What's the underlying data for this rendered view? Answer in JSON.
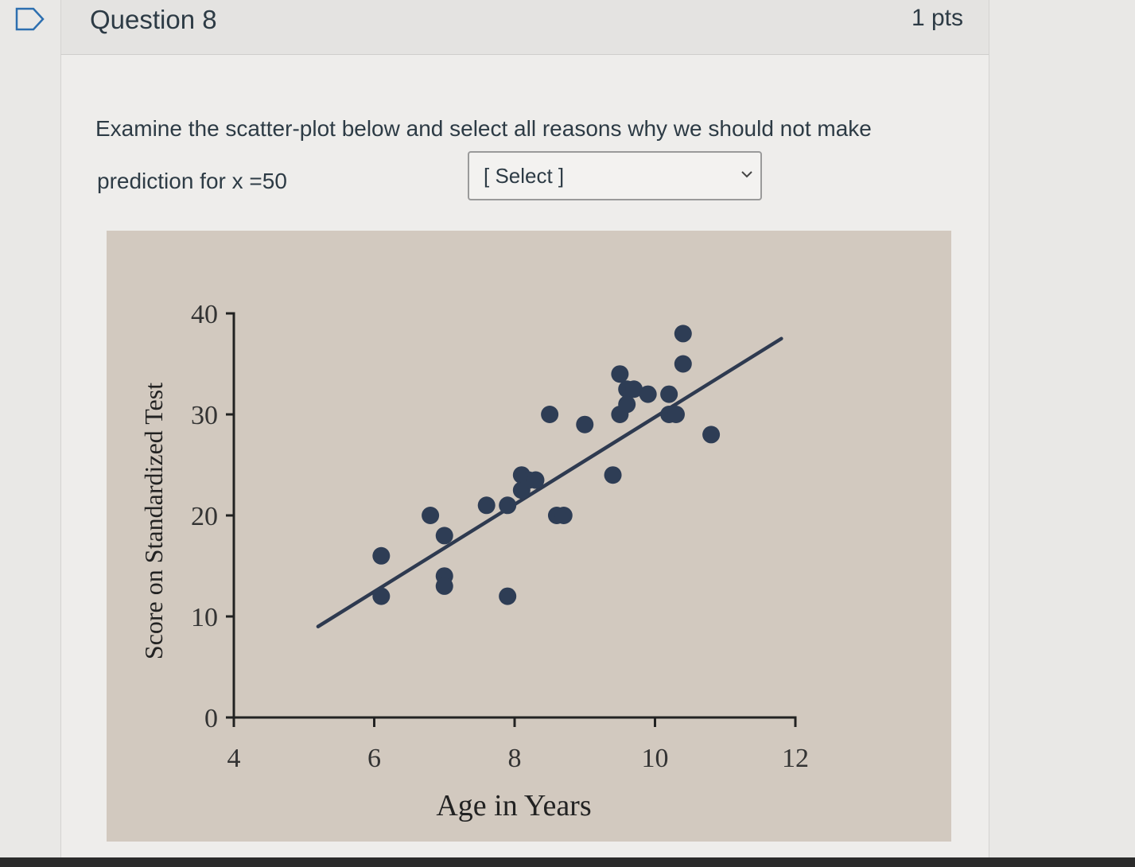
{
  "question": {
    "title": "Question 8",
    "points": "1 pts",
    "prompt_line1": "Examine the scatter-plot below and select all reasons why we should not make",
    "prompt_line2": "prediction for x =50",
    "select_value": "[ Select ]"
  },
  "icons": {
    "flag": "flag-question-icon",
    "dropdown": "chevron-down-icon"
  },
  "colors": {
    "text": "#2d3b45",
    "plot_bg": "#d2c9bf",
    "marker": "#2e3d55"
  },
  "chart_data": {
    "type": "scatter",
    "title": "",
    "xlabel": "Age in Years",
    "ylabel": "Score on Standardized Test",
    "xlim": [
      4,
      12
    ],
    "ylim": [
      0,
      40
    ],
    "xticks": [
      4,
      6,
      8,
      10,
      12
    ],
    "yticks": [
      0,
      10,
      20,
      30,
      40
    ],
    "x": [
      6.1,
      6.1,
      6.8,
      7.0,
      7.0,
      7.0,
      7.6,
      7.9,
      7.9,
      8.1,
      8.1,
      8.2,
      8.3,
      8.5,
      8.6,
      8.7,
      9.0,
      9.4,
      9.5,
      9.5,
      9.6,
      9.6,
      9.7,
      9.9,
      10.2,
      10.2,
      10.3,
      10.4,
      10.4,
      10.8
    ],
    "y": [
      16,
      12,
      20,
      18,
      14,
      13,
      21,
      21,
      12,
      24,
      22.5,
      23.5,
      23.5,
      30,
      20,
      20,
      29,
      24,
      34,
      30,
      32.5,
      31,
      32.5,
      32,
      32,
      30,
      30,
      38,
      35,
      28
    ],
    "trendline": {
      "x": [
        5.2,
        11.8
      ],
      "y": [
        9,
        37.5
      ]
    },
    "grid": false,
    "legend": "none"
  }
}
